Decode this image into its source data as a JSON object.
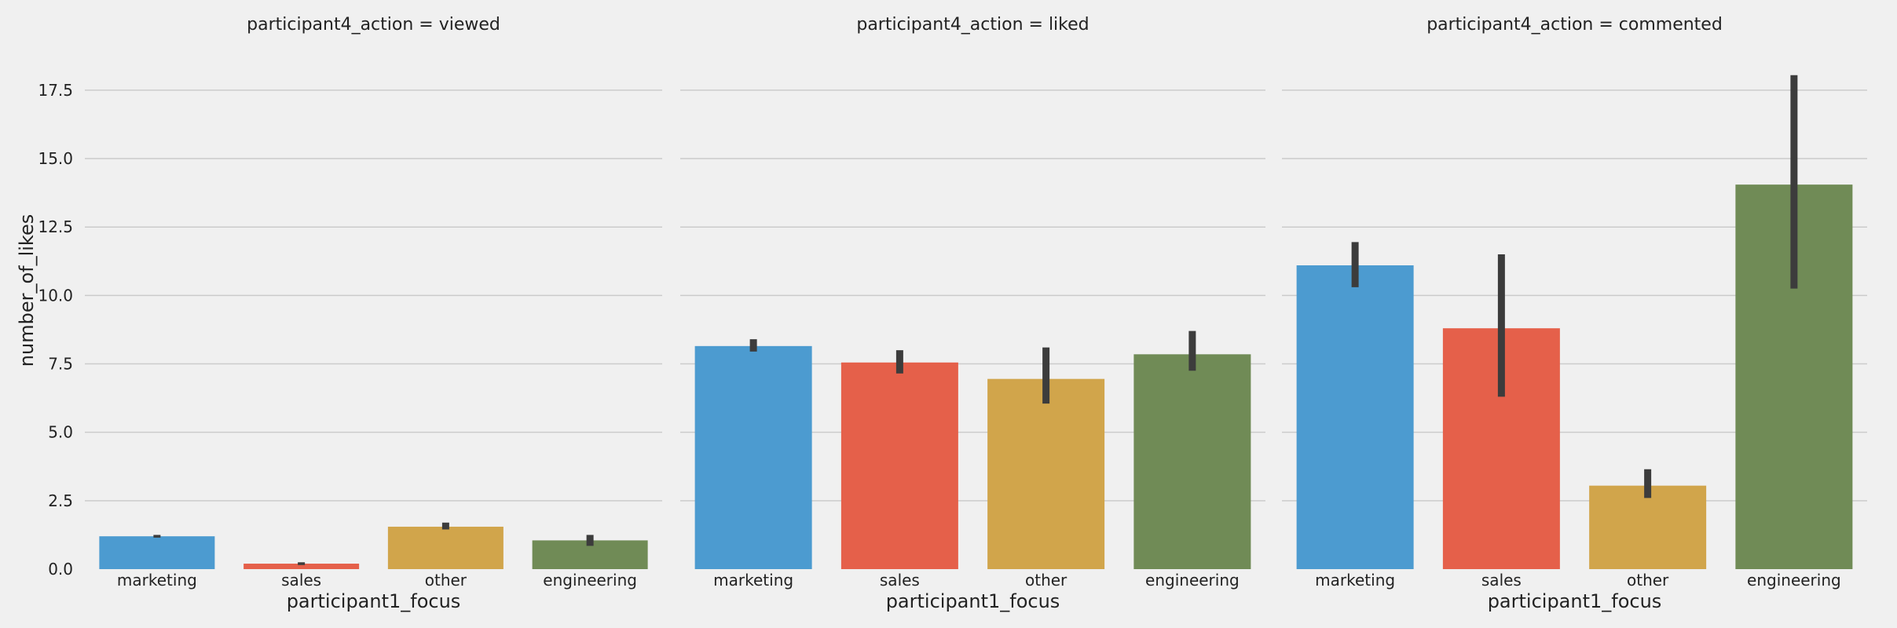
{
  "chart_data": {
    "type": "bar",
    "ylabel": "number_of_likes",
    "xlabel": "participant1_focus",
    "ylim": [
      0,
      18.5
    ],
    "yticks": [
      "0.0",
      "2.5",
      "5.0",
      "7.5",
      "10.0",
      "12.5",
      "15.0",
      "17.5"
    ],
    "categories": [
      "marketing",
      "sales",
      "other",
      "engineering"
    ],
    "colors": [
      "#4c9bd0",
      "#e5604a",
      "#d1a54b",
      "#708b56"
    ],
    "grid": true,
    "panels": [
      {
        "title": "participant4_action = viewed",
        "values": [
          1.2,
          0.2,
          1.55,
          1.05
        ],
        "ci_low": [
          1.15,
          0.15,
          1.45,
          0.85
        ],
        "ci_high": [
          1.25,
          0.25,
          1.7,
          1.25
        ]
      },
      {
        "title": "participant4_action = liked",
        "values": [
          8.15,
          7.55,
          6.95,
          7.85
        ],
        "ci_low": [
          7.95,
          7.15,
          6.05,
          7.25
        ],
        "ci_high": [
          8.4,
          8.0,
          8.1,
          8.7
        ]
      },
      {
        "title": "participant4_action = commented",
        "values": [
          11.1,
          8.8,
          3.05,
          14.05
        ],
        "ci_low": [
          10.3,
          6.3,
          2.6,
          10.25
        ],
        "ci_high": [
          11.95,
          11.5,
          3.65,
          18.05
        ]
      }
    ]
  }
}
